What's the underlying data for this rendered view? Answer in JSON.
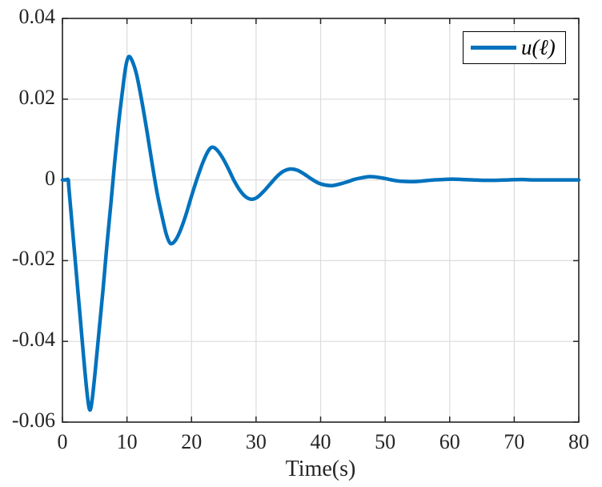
{
  "figure": {
    "background_color": "#ffffff",
    "axis_color": "#252525",
    "grid_color": "#dcdcdc",
    "tick_label_color": "#252525"
  },
  "legend": {
    "position": "top-right",
    "border_color": "#000000",
    "entries": [
      {
        "label": "u(ℓ)",
        "color": "#0072BD"
      }
    ]
  },
  "chart_data": {
    "type": "line",
    "title": "",
    "xlabel": "Time(s)",
    "ylabel": "",
    "xlim": [
      0,
      80
    ],
    "ylim": [
      -0.06,
      0.04
    ],
    "x_ticks": [
      0,
      10,
      20,
      30,
      40,
      50,
      60,
      70,
      80
    ],
    "x_tick_labels": [
      "0",
      "10",
      "20",
      "30",
      "40",
      "50",
      "60",
      "70",
      "80"
    ],
    "y_ticks": [
      0.04,
      0.02,
      0,
      -0.02,
      -0.04,
      -0.06
    ],
    "y_tick_labels": [
      "0.04",
      "0.02",
      "0",
      "-0.02",
      "-0.04",
      "-0.06"
    ],
    "grid": true,
    "legend_position": "top-right",
    "series": [
      {
        "name": "u(ℓ)",
        "color": "#0072BD",
        "line_width": 4.5,
        "points": [
          [
            0,
            0
          ],
          [
            0.5,
            0
          ],
          [
            0.9,
            0
          ],
          [
            1.0,
            -0.002
          ],
          [
            1.6,
            -0.013
          ],
          [
            2.2,
            -0.024
          ],
          [
            2.8,
            -0.035
          ],
          [
            3.4,
            -0.046
          ],
          [
            3.9,
            -0.054
          ],
          [
            4.25,
            -0.057
          ],
          [
            4.6,
            -0.0545
          ],
          [
            5.1,
            -0.047
          ],
          [
            5.7,
            -0.037
          ],
          [
            6.3,
            -0.027
          ],
          [
            6.9,
            -0.016
          ],
          [
            7.5,
            -0.006
          ],
          [
            8.1,
            0.0045
          ],
          [
            8.7,
            0.014
          ],
          [
            9.3,
            0.022
          ],
          [
            9.8,
            0.028
          ],
          [
            10.25,
            0.0305
          ],
          [
            10.8,
            0.0295
          ],
          [
            11.5,
            0.026
          ],
          [
            12.3,
            0.0195
          ],
          [
            13.1,
            0.012
          ],
          [
            13.9,
            0.004
          ],
          [
            14.7,
            -0.0035
          ],
          [
            15.5,
            -0.0095
          ],
          [
            16.1,
            -0.0135
          ],
          [
            16.7,
            -0.0157
          ],
          [
            17.4,
            -0.0152
          ],
          [
            18.2,
            -0.0128
          ],
          [
            19.1,
            -0.0088
          ],
          [
            20,
            -0.004
          ],
          [
            20.9,
            0.0005
          ],
          [
            21.8,
            0.0045
          ],
          [
            22.6,
            0.0072
          ],
          [
            23.2,
            0.0081
          ],
          [
            23.9,
            0.0075
          ],
          [
            24.8,
            0.0055
          ],
          [
            25.7,
            0.0028
          ],
          [
            26.6,
            -0.0002
          ],
          [
            27.5,
            -0.0026
          ],
          [
            28.4,
            -0.0042
          ],
          [
            29.3,
            -0.0048
          ],
          [
            30.2,
            -0.0043
          ],
          [
            31.2,
            -0.0028
          ],
          [
            32.2,
            -0.001
          ],
          [
            33.2,
            0.0008
          ],
          [
            34.2,
            0.0021
          ],
          [
            35.3,
            0.0027
          ],
          [
            36.4,
            0.0024
          ],
          [
            37.5,
            0.0014
          ],
          [
            38.6,
            0.0002
          ],
          [
            39.7,
            -0.0008
          ],
          [
            40.8,
            -0.0013
          ],
          [
            41.9,
            -0.0014
          ],
          [
            43,
            -0.001
          ],
          [
            44.1,
            -0.0005
          ],
          [
            45.2,
            0.0001
          ],
          [
            46.3,
            0.0005
          ],
          [
            47.4,
            0.0008
          ],
          [
            48.6,
            0.0007
          ],
          [
            49.8,
            0.0004
          ],
          [
            51,
            0
          ],
          [
            52.2,
            -0.0003
          ],
          [
            53.4,
            -0.0004
          ],
          [
            54.8,
            -0.0004
          ],
          [
            56.2,
            -0.0002
          ],
          [
            57.6,
            0
          ],
          [
            59,
            0.0001
          ],
          [
            60.4,
            0.0002
          ],
          [
            62,
            0.0001
          ],
          [
            63.6,
            0
          ],
          [
            65.2,
            -0.0001
          ],
          [
            67,
            -0.0001
          ],
          [
            69,
            0
          ],
          [
            71,
            0.0001
          ],
          [
            73,
            0
          ],
          [
            75.5,
            0
          ],
          [
            78,
            0
          ],
          [
            80,
            0
          ]
        ]
      }
    ]
  }
}
